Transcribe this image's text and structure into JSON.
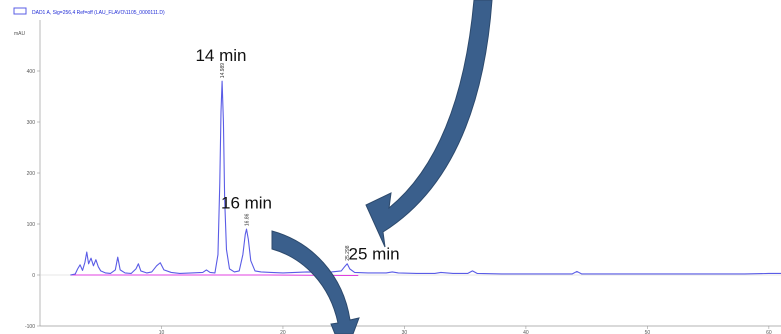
{
  "colors": {
    "trace": "#5a5ce6",
    "baseline": "#e040e0",
    "arrow_fill": "#3a5f8c",
    "arrow_stroke": "#2d4a6d",
    "axis": "#9a9a9a"
  },
  "chart_data": {
    "type": "line",
    "legend": "DAD1 A, Sig=256,4 Ref=off (LAU_FLAVO\\1105_0000111.D)",
    "ylabel": "mAU",
    "xlim": [
      0,
      61
    ],
    "ylim": [
      -100,
      500
    ],
    "yticks": [
      -100,
      0,
      100,
      200,
      300,
      400
    ],
    "xticks": [
      10,
      20,
      30,
      40,
      50,
      60
    ],
    "grid": false,
    "series": [
      {
        "points": [
          [
            2.5,
            0
          ],
          [
            2.9,
            2
          ],
          [
            3.1,
            12
          ],
          [
            3.3,
            20
          ],
          [
            3.5,
            9
          ],
          [
            3.7,
            25
          ],
          [
            3.85,
            45
          ],
          [
            4.0,
            22
          ],
          [
            4.2,
            33
          ],
          [
            4.4,
            18
          ],
          [
            4.6,
            30
          ],
          [
            4.8,
            16
          ],
          [
            5.0,
            8
          ],
          [
            5.4,
            4
          ],
          [
            5.8,
            3
          ],
          [
            6.2,
            10
          ],
          [
            6.4,
            35
          ],
          [
            6.6,
            10
          ],
          [
            7.0,
            4
          ],
          [
            7.5,
            3
          ],
          [
            7.9,
            12
          ],
          [
            8.1,
            22
          ],
          [
            8.3,
            8
          ],
          [
            8.8,
            4
          ],
          [
            9.2,
            6
          ],
          [
            9.6,
            18
          ],
          [
            9.9,
            24
          ],
          [
            10.2,
            10
          ],
          [
            10.8,
            5
          ],
          [
            11.5,
            3
          ],
          [
            12.5,
            4
          ],
          [
            13.4,
            5
          ],
          [
            13.7,
            10
          ],
          [
            14.0,
            5
          ],
          [
            14.4,
            4
          ],
          [
            14.65,
            40
          ],
          [
            14.8,
            180
          ],
          [
            14.9,
            320
          ],
          [
            14.99,
            380
          ],
          [
            15.1,
            300
          ],
          [
            15.2,
            150
          ],
          [
            15.35,
            50
          ],
          [
            15.6,
            12
          ],
          [
            16.0,
            6
          ],
          [
            16.4,
            8
          ],
          [
            16.7,
            40
          ],
          [
            16.9,
            80
          ],
          [
            17.0,
            90
          ],
          [
            17.15,
            70
          ],
          [
            17.35,
            28
          ],
          [
            17.7,
            8
          ],
          [
            18.2,
            6
          ],
          [
            19.0,
            5
          ],
          [
            20.0,
            4
          ],
          [
            21.0,
            5
          ],
          [
            22.0,
            6
          ],
          [
            23.0,
            5
          ],
          [
            24.0,
            6
          ],
          [
            24.8,
            8
          ],
          [
            25.1,
            17
          ],
          [
            25.29,
            22
          ],
          [
            25.5,
            12
          ],
          [
            25.9,
            5
          ],
          [
            27.0,
            4
          ],
          [
            28.5,
            4
          ],
          [
            29.0,
            6
          ],
          [
            29.5,
            4
          ],
          [
            31.0,
            3
          ],
          [
            32.5,
            3
          ],
          [
            33.0,
            5
          ],
          [
            34.0,
            3
          ],
          [
            35.2,
            3
          ],
          [
            35.6,
            8
          ],
          [
            36.0,
            3
          ],
          [
            38.0,
            2
          ],
          [
            40.0,
            2
          ],
          [
            42.0,
            2
          ],
          [
            43.8,
            2
          ],
          [
            44.2,
            7
          ],
          [
            44.6,
            2
          ],
          [
            47.0,
            2
          ],
          [
            50.0,
            2
          ],
          [
            54.0,
            2
          ],
          [
            56.0,
            2
          ],
          [
            58.0,
            2
          ],
          [
            60.0,
            3
          ],
          [
            61.0,
            3
          ]
        ]
      }
    ],
    "baseline": [
      [
        2.5,
        0
      ],
      [
        18.8,
        0
      ],
      [
        25.0,
        -1
      ],
      [
        26.2,
        -1
      ]
    ],
    "peak_labels": [
      {
        "x": 14.99,
        "y": 380,
        "text": "14.989"
      },
      {
        "x": 17.0,
        "y": 90,
        "text": "16.86"
      },
      {
        "x": 25.29,
        "y": 22,
        "text": "25.298"
      }
    ],
    "annotations": [
      {
        "x": 14.9,
        "y": 420,
        "text": "14 min"
      },
      {
        "x": 17.0,
        "y": 130,
        "text": "16 min"
      },
      {
        "x": 27.5,
        "y": 30,
        "text": "25 min"
      }
    ]
  }
}
